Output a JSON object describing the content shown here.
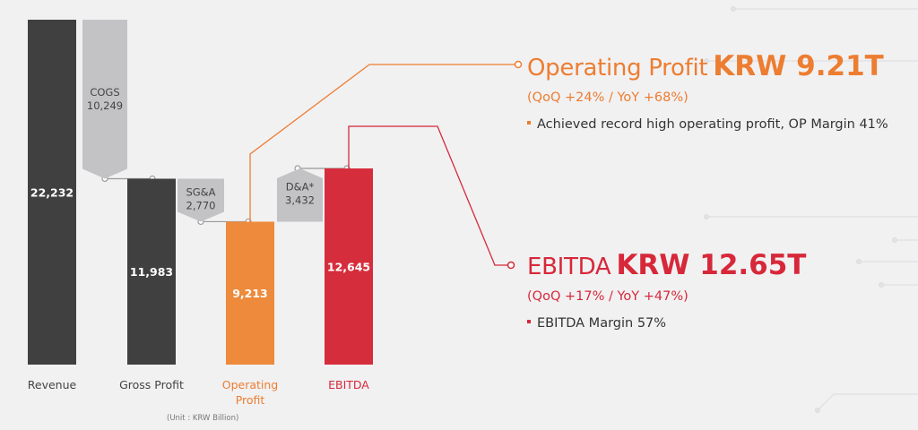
{
  "chart_data": {
    "type": "waterfall",
    "categories": [
      "Revenue",
      "Gross Profit",
      "Operating Profit",
      "EBITDA"
    ],
    "values": [
      22232,
      11983,
      9213,
      12645
    ],
    "value_labels": [
      "22,232",
      "11,983",
      "9,213",
      "12,645"
    ],
    "bar_colors": [
      "#404041",
      "#404041",
      "#ed8a3b",
      "#d62d3c"
    ],
    "category_label_colors": [
      "#444444",
      "#444444",
      "#ed7d31",
      "#d7283a"
    ],
    "deltas": [
      {
        "label": "COGS",
        "value_label": "10,249",
        "value": -10249,
        "between": [
          "Revenue",
          "Gross Profit"
        ]
      },
      {
        "label": "SG&A",
        "value_label": "2,770",
        "value": -2770,
        "between": [
          "Gross Profit",
          "Operating Profit"
        ]
      },
      {
        "label": "D&A*",
        "value_label": "3,432",
        "value": 3432,
        "between": [
          "Operating Profit",
          "EBITDA"
        ]
      }
    ],
    "unit": "(Unit : KRW Billion)"
  },
  "callouts": {
    "operating": {
      "title": "Operating Profit",
      "amount": "KRW 9.21T",
      "change": "(QoQ +24% / YoY +68%)",
      "bullet": "Achieved record high operating profit, OP Margin 41%",
      "color": "#ed7d31"
    },
    "ebitda": {
      "title": "EBITDA",
      "amount": "KRW 12.65T",
      "change": "(QoQ +17% / YoY +47%)",
      "bullet": "EBITDA Margin 57%",
      "color": "#d7283a"
    }
  }
}
